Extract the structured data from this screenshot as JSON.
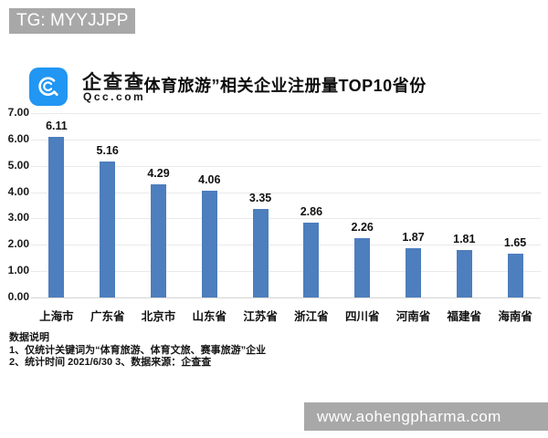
{
  "overlays": {
    "top_banner": "TG: MYYJJPP",
    "bottom_banner": "www.aohengpharma.com",
    "banner_bg": "#a8a8a8"
  },
  "header": {
    "logo": {
      "brand_cn": "企查查",
      "brand_domain": "Qcc.com",
      "icon_color": "#2196f3"
    }
  },
  "chart_data": {
    "type": "bar",
    "title": "“体育旅游”相关企业注册量TOP10省份",
    "categories": [
      "上海市",
      "广东省",
      "北京市",
      "山东省",
      "江苏省",
      "浙江省",
      "四川省",
      "河南省",
      "福建省",
      "海南省"
    ],
    "values": [
      6.11,
      5.16,
      4.29,
      4.06,
      3.35,
      2.86,
      2.26,
      1.87,
      1.81,
      1.65
    ],
    "xlabel": "",
    "ylabel": "",
    "ylim": [
      0,
      7
    ],
    "ytick_step": 1,
    "ytick_labels": [
      "0.00",
      "1.00",
      "2.00",
      "3.00",
      "4.00",
      "5.00",
      "6.00",
      "7.00"
    ],
    "bar_color": "#4d7ebd",
    "grid": true,
    "legend": "none"
  },
  "footnotes": {
    "heading": "数据说明",
    "line1": "1、仅统计关键词为“体育旅游、体育文旅、赛事旅游”企业",
    "line2": "2、统计时间 2021/6/30    3、数据来源：企查查"
  }
}
